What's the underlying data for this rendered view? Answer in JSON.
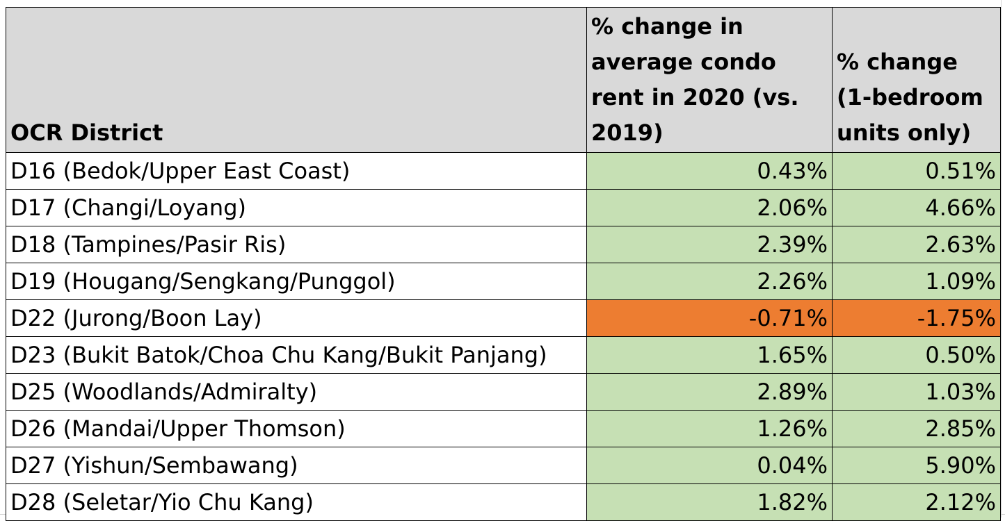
{
  "sheet": {
    "colors": {
      "header_fill": "#d9d9d9",
      "positive_fill": "#c6e0b4",
      "negative_fill": "#ed7d31",
      "border": "#000000",
      "gridline": "#d4d4d4"
    }
  },
  "chart_data": {
    "type": "table",
    "columns": [
      "OCR District",
      "% change in average condo rent in 2020 (vs. 2019)",
      "% change (1-bedroom units only)"
    ],
    "rows": [
      {
        "district": "D16 (Bedok/Upper East Coast)",
        "avg_change": "0.43%",
        "one_bed_change": "0.51%",
        "avg_sign": "positive",
        "one_bed_sign": "positive"
      },
      {
        "district": "D17 (Changi/Loyang)",
        "avg_change": "2.06%",
        "one_bed_change": "4.66%",
        "avg_sign": "positive",
        "one_bed_sign": "positive"
      },
      {
        "district": "D18 (Tampines/Pasir Ris)",
        "avg_change": "2.39%",
        "one_bed_change": "2.63%",
        "avg_sign": "positive",
        "one_bed_sign": "positive"
      },
      {
        "district": "D19 (Hougang/Sengkang/Punggol)",
        "avg_change": "2.26%",
        "one_bed_change": "1.09%",
        "avg_sign": "positive",
        "one_bed_sign": "positive"
      },
      {
        "district": "D22 (Jurong/Boon Lay)",
        "avg_change": "-0.71%",
        "one_bed_change": "-1.75%",
        "avg_sign": "negative",
        "one_bed_sign": "negative"
      },
      {
        "district": "D23 (Bukit Batok/Choa Chu Kang/Bukit Panjang)",
        "avg_change": "1.65%",
        "one_bed_change": "0.50%",
        "avg_sign": "positive",
        "one_bed_sign": "positive"
      },
      {
        "district": "D25 (Woodlands/Admiralty)",
        "avg_change": "2.89%",
        "one_bed_change": "1.03%",
        "avg_sign": "positive",
        "one_bed_sign": "positive"
      },
      {
        "district": "D26 (Mandai/Upper Thomson)",
        "avg_change": "1.26%",
        "one_bed_change": "2.85%",
        "avg_sign": "positive",
        "one_bed_sign": "positive"
      },
      {
        "district": "D27 (Yishun/Sembawang)",
        "avg_change": "0.04%",
        "one_bed_change": "5.90%",
        "avg_sign": "positive",
        "one_bed_sign": "positive"
      },
      {
        "district": "D28 (Seletar/Yio Chu Kang)",
        "avg_change": "1.82%",
        "one_bed_change": "2.12%",
        "avg_sign": "positive",
        "one_bed_sign": "positive"
      }
    ]
  }
}
